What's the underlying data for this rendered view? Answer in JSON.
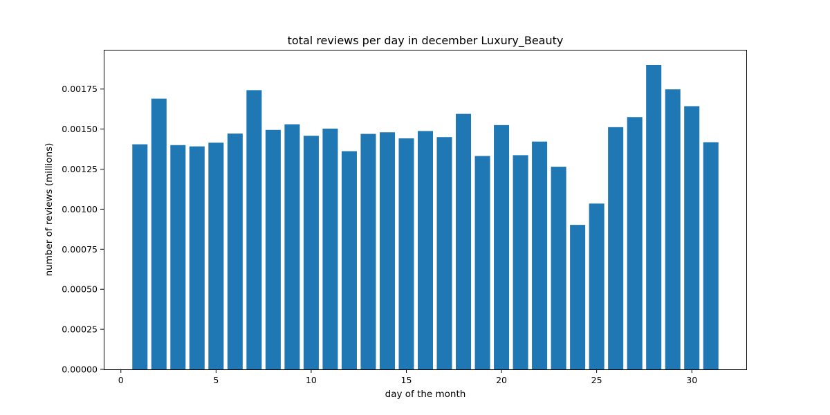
{
  "chart_data": {
    "type": "bar",
    "title": "total reviews per day in december Luxury_Beauty",
    "xlabel": "day of the month",
    "ylabel": "number of reviews (millions)",
    "xlim": [
      -0.9,
      32.9
    ],
    "ylim": [
      0,
      0.001995
    ],
    "x_ticks": [
      0,
      5,
      10,
      15,
      20,
      25,
      30
    ],
    "y_ticks": [
      0.0,
      0.00025,
      0.0005,
      0.00075,
      0.001,
      0.00125,
      0.0015,
      0.00175
    ],
    "y_tick_labels": [
      "0.00000",
      "0.00025",
      "0.00050",
      "0.00075",
      "0.00100",
      "0.00125",
      "0.00150",
      "0.00175"
    ],
    "bar_color": "#1f77b4",
    "grid": false,
    "x": [
      1,
      2,
      3,
      4,
      5,
      6,
      7,
      8,
      9,
      10,
      11,
      12,
      13,
      14,
      15,
      16,
      17,
      18,
      19,
      20,
      21,
      22,
      23,
      24,
      25,
      26,
      27,
      28,
      29,
      30,
      31
    ],
    "values": [
      0.001405,
      0.00169,
      0.0014,
      0.001392,
      0.001415,
      0.001472,
      0.001743,
      0.001495,
      0.00153,
      0.001458,
      0.001503,
      0.001362,
      0.00147,
      0.00148,
      0.001442,
      0.001488,
      0.00145,
      0.001595,
      0.001332,
      0.001525,
      0.001337,
      0.001422,
      0.001265,
      0.000902,
      0.001035,
      0.001512,
      0.001575,
      0.0019,
      0.001748,
      0.001643,
      0.001418
    ]
  }
}
